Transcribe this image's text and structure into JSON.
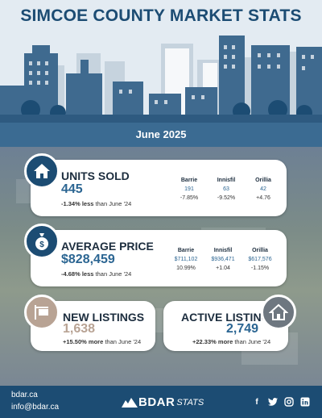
{
  "header": {
    "title": "SIMCOE COUNTY MARKET STATS"
  },
  "month": "June 2025",
  "cards": {
    "units_sold": {
      "title": "UNITS SOLD",
      "value": "445",
      "change": "-1.34% less",
      "suffix": " than June '24",
      "icon": "house-icon",
      "towns": [
        {
          "name": "Barrie",
          "value": "191",
          "change": "-7.85%"
        },
        {
          "name": "Innisfil",
          "value": "63",
          "change": "-9.52%"
        },
        {
          "name": "Orillia",
          "value": "42",
          "change": "+4.76"
        }
      ]
    },
    "average_price": {
      "title": "AVERAGE PRICE",
      "value": "$828,459",
      "change": "-4.68% less",
      "suffix": " than June '24",
      "icon": "money-bag-icon",
      "towns": [
        {
          "name": "Barrie",
          "value": "$711,102",
          "change": "10.99%"
        },
        {
          "name": "Innisfil",
          "value": "$936,471",
          "change": "+1.04"
        },
        {
          "name": "Orillia",
          "value": "$617,576",
          "change": "-1.15%"
        }
      ]
    },
    "new_listings": {
      "title": "NEW LISTINGS",
      "value": "1,638",
      "change": "+15.50% more",
      "suffix": " than June '24",
      "icon": "for-sale-sign-icon"
    },
    "active_listings": {
      "title": "ACTIVE LISTINGS",
      "value": "2,749",
      "change": "+22.33% more",
      "suffix": " than June '24",
      "icon": "house-outline-icon"
    }
  },
  "footer": {
    "website": "bdar.ca",
    "email": "info@bdar.ca",
    "brand_bold": "BDAR",
    "brand_italic": "STATS",
    "socials": [
      "facebook-icon",
      "twitter-icon",
      "instagram-icon",
      "linkedin-icon"
    ]
  },
  "colors": {
    "primary": "#1c4c73",
    "accent": "#2b6592",
    "bar": "#3b6b92",
    "new_listings_value": "#b8a394"
  }
}
